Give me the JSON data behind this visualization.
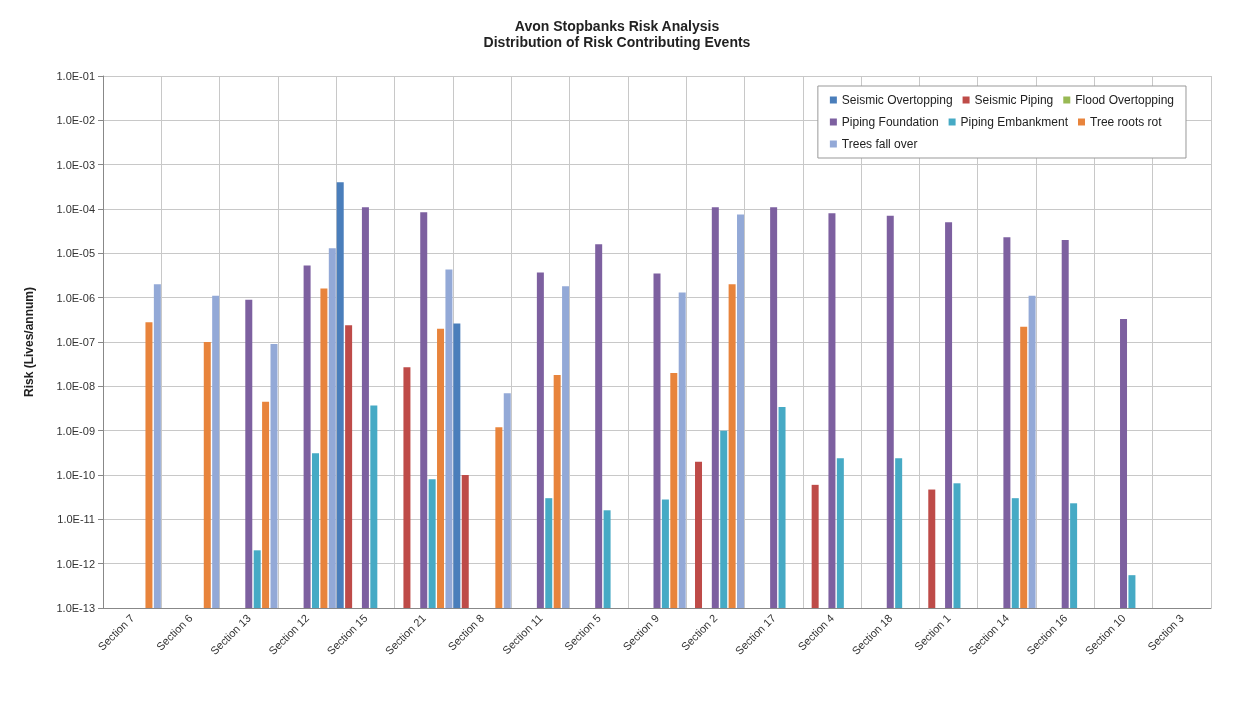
{
  "chart_data": {
    "type": "bar",
    "title": "Avon Stopbanks Risk Analysis",
    "subtitle": "Distribution of Risk Contributing Events",
    "ylabel": "Risk (Lives/annum)",
    "log": true,
    "grid": true,
    "legend": "top right",
    "categories": [
      "Section 7",
      "Section 6",
      "Section 13",
      "Section 12",
      "Section 15",
      "Section 21",
      "Section 8",
      "Section 11",
      "Section 5",
      "Section 9",
      "Section 2",
      "Section 17",
      "Section 4",
      "Section 18",
      "Section 1",
      "Section 14",
      "Section 16",
      "Section 10",
      "Section 3"
    ],
    "ylim": [
      1e-13,
      0.1
    ],
    "yticks": [
      {
        "value": 1e-13,
        "label": "1.0E-13"
      },
      {
        "value": 1e-12,
        "label": "1.0E-12"
      },
      {
        "value": 1e-11,
        "label": "1.0E-11"
      },
      {
        "value": 1e-10,
        "label": "1.0E-10"
      },
      {
        "value": 1e-09,
        "label": "1.0E-09"
      },
      {
        "value": 1e-08,
        "label": "1.0E-08"
      },
      {
        "value": 1e-07,
        "label": "1.0E-07"
      },
      {
        "value": 1e-06,
        "label": "1.0E-06"
      },
      {
        "value": 1e-05,
        "label": "1.0E-05"
      },
      {
        "value": 0.0001,
        "label": "1.0E-04"
      },
      {
        "value": 0.001,
        "label": "1.0E-03"
      },
      {
        "value": 0.01,
        "label": "1.0E-02"
      },
      {
        "value": 0.1,
        "label": "1.0E-01"
      }
    ],
    "series": [
      {
        "name": "Seismic Overtopping",
        "color": "#4a7ebb",
        "values": [
          null,
          null,
          null,
          null,
          0.0004,
          null,
          2.6e-07,
          null,
          null,
          null,
          null,
          null,
          null,
          null,
          null,
          null,
          null,
          null,
          null
        ]
      },
      {
        "name": "Seismic Piping",
        "color": "#be4b48",
        "values": [
          null,
          null,
          null,
          null,
          2.4e-07,
          2.7e-08,
          1e-10,
          null,
          null,
          null,
          2e-10,
          null,
          6e-11,
          null,
          4.7e-11,
          null,
          null,
          null,
          null
        ]
      },
      {
        "name": "Flood Overtopping",
        "color": "#98b954",
        "values": [
          null,
          null,
          null,
          null,
          null,
          null,
          null,
          null,
          null,
          null,
          null,
          null,
          null,
          null,
          null,
          null,
          null,
          null,
          null
        ]
      },
      {
        "name": "Piping Foundation",
        "color": "#7d60a0",
        "values": [
          null,
          null,
          9e-07,
          5.3e-06,
          0.00011,
          8.5e-05,
          null,
          3.7e-06,
          1.6e-05,
          3.5e-06,
          0.00011,
          0.00011,
          8e-05,
          7e-05,
          5e-05,
          2.3e-05,
          2e-05,
          3.3e-07,
          null
        ]
      },
      {
        "name": "Piping Embankment",
        "color": "#46aac5",
        "values": [
          null,
          null,
          2e-12,
          3.1e-10,
          3.7e-09,
          8e-11,
          null,
          3e-11,
          1.6e-11,
          2.8e-11,
          1e-09,
          3.4e-09,
          2.4e-10,
          2.4e-10,
          6.5e-11,
          3e-11,
          2.3e-11,
          5.5e-13,
          null
        ]
      },
      {
        "name": "Tree roots rot",
        "color": "#e8843c",
        "values": [
          2.8e-07,
          1e-07,
          4.5e-09,
          1.6e-06,
          null,
          2e-07,
          1.2e-09,
          1.8e-08,
          null,
          2e-08,
          2e-06,
          null,
          null,
          null,
          null,
          2.2e-07,
          null,
          null,
          null
        ]
      },
      {
        "name": "Trees fall over",
        "color": "#93a9d7",
        "values": [
          2e-06,
          1.1e-06,
          9e-08,
          1.3e-05,
          null,
          4.3e-06,
          7e-09,
          1.8e-06,
          null,
          1.3e-06,
          7.5e-05,
          null,
          null,
          null,
          null,
          1.1e-06,
          null,
          null,
          null
        ]
      }
    ]
  }
}
